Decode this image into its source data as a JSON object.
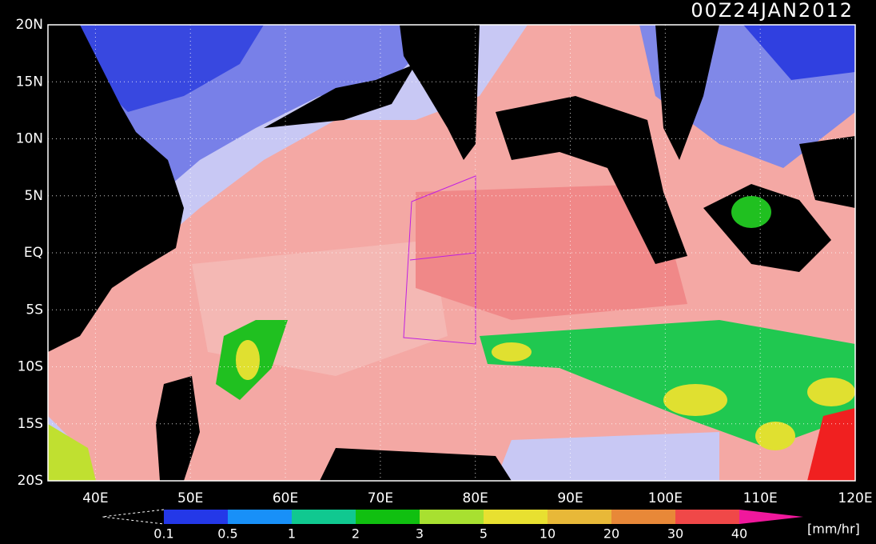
{
  "title": "00Z24JAN2012",
  "lat_labels": [
    "20N",
    "15N",
    "10N",
    "5N",
    "EQ",
    "5S",
    "10S",
    "15S",
    "20S"
  ],
  "lon_labels": [
    "40E",
    "50E",
    "60E",
    "70E",
    "80E",
    "90E",
    "100E",
    "110E",
    "120E"
  ],
  "colorbar": {
    "labels": [
      "0.1",
      "0.5",
      "1",
      "2",
      "3",
      "5",
      "10",
      "20",
      "30",
      "40"
    ],
    "colors": [
      "#2438e8",
      "#1890f8",
      "#10c890",
      "#10c010",
      "#a8e030",
      "#e8e030",
      "#e8b838",
      "#e88838",
      "#f04848"
    ],
    "over_color": "#f0189c",
    "unit": "[mm/hr]"
  }
}
